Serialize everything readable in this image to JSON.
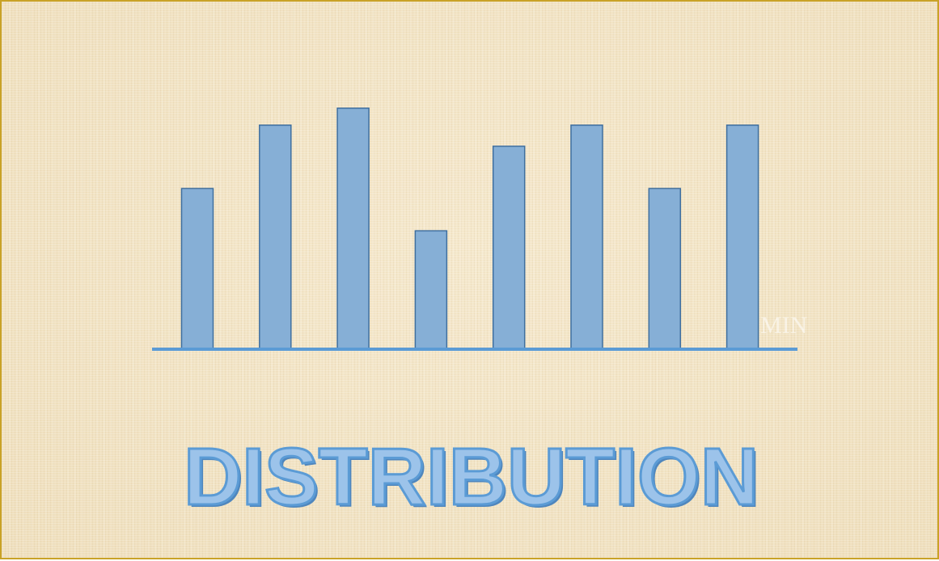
{
  "chart_data": {
    "type": "bar",
    "categories": [
      "",
      "",
      "",
      "",
      "",
      "",
      "",
      ""
    ],
    "values": [
      38,
      53,
      57,
      28,
      48,
      53,
      38,
      53
    ],
    "ylim": [
      0,
      65
    ],
    "title": "DISTRIBUTION",
    "xlabel": "",
    "ylabel": "",
    "grid": false,
    "legend": "none",
    "colors": {
      "bar_fill": "#86afd6",
      "bar_stroke": "#3f6f9f",
      "axis": "#5b9bd5"
    }
  },
  "faint_label": "MIN"
}
